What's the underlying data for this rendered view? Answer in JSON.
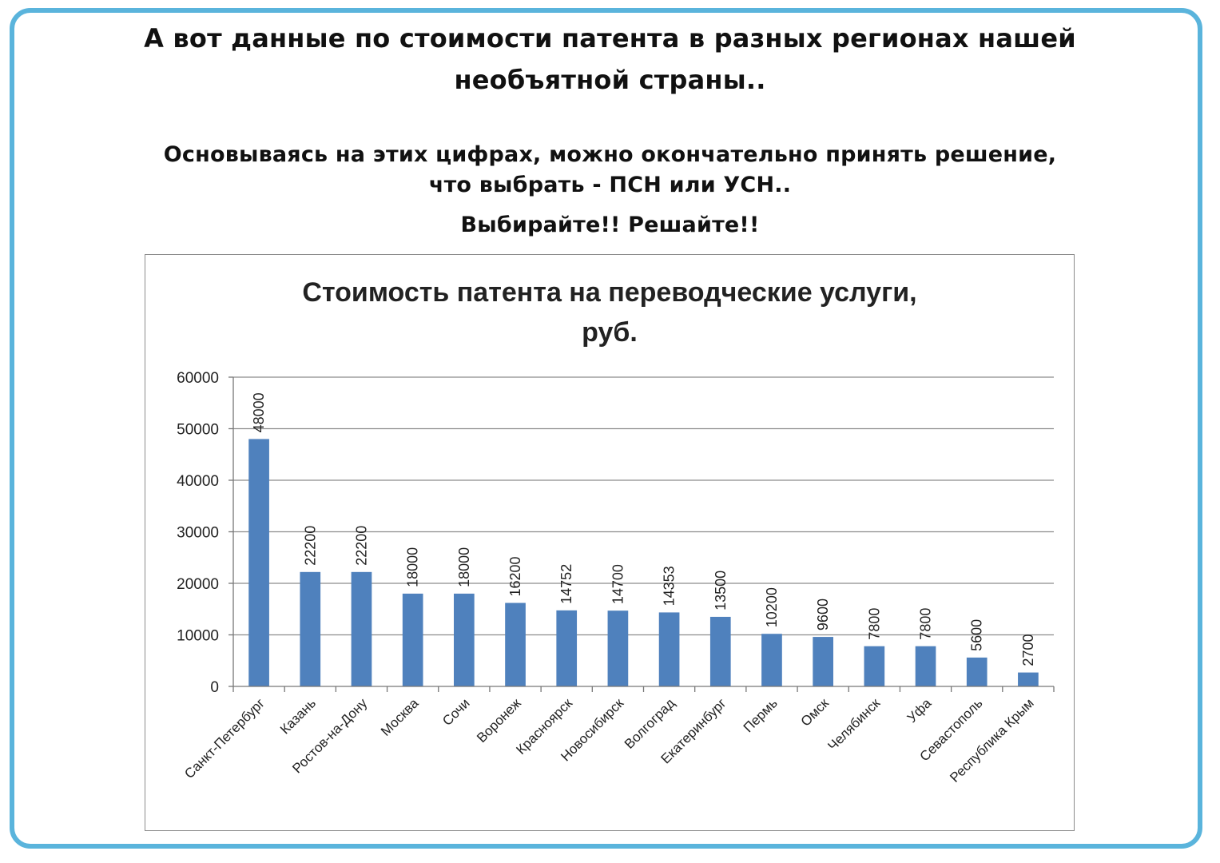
{
  "header": {
    "intro_line1": "А вот данные по стоимости патента в разных регионах нашей",
    "intro_line2": "необъятной страны..",
    "decision_line1": "Основываясь на этих цифрах, можно окончательно принять решение,",
    "decision_line2": "что выбрать - ПСН или УСН..",
    "call_to_action": "Выбирайте!! Решайте!!"
  },
  "colors": {
    "frame_border": "#5ab4dc",
    "bar": "#4f81bd",
    "gridline": "#8c8c8c"
  },
  "chart_data": {
    "type": "bar",
    "title_line1": "Стоимость патента на переводческие услуги,",
    "title_line2": "руб.",
    "xlabel": "",
    "ylabel": "",
    "ylim": [
      0,
      60000
    ],
    "yticks": [
      0,
      10000,
      20000,
      30000,
      40000,
      50000,
      60000
    ],
    "grid": true,
    "data_labels": "rotated-above-bars",
    "categories": [
      "Санкт-Петербург",
      "Казань",
      "Ростов-на-Дону",
      "Москва",
      "Сочи",
      "Воронеж",
      "Красноярск",
      "Новосибирск",
      "Волгоград",
      "Екатеринбург",
      "Пермь",
      "Омск",
      "Челябинск",
      "Уфа",
      "Севастополь",
      "Республика Крым"
    ],
    "values": [
      48000,
      22200,
      22200,
      18000,
      18000,
      16200,
      14752,
      14700,
      14353,
      13500,
      10200,
      9600,
      7800,
      7800,
      5600,
      2700
    ]
  }
}
